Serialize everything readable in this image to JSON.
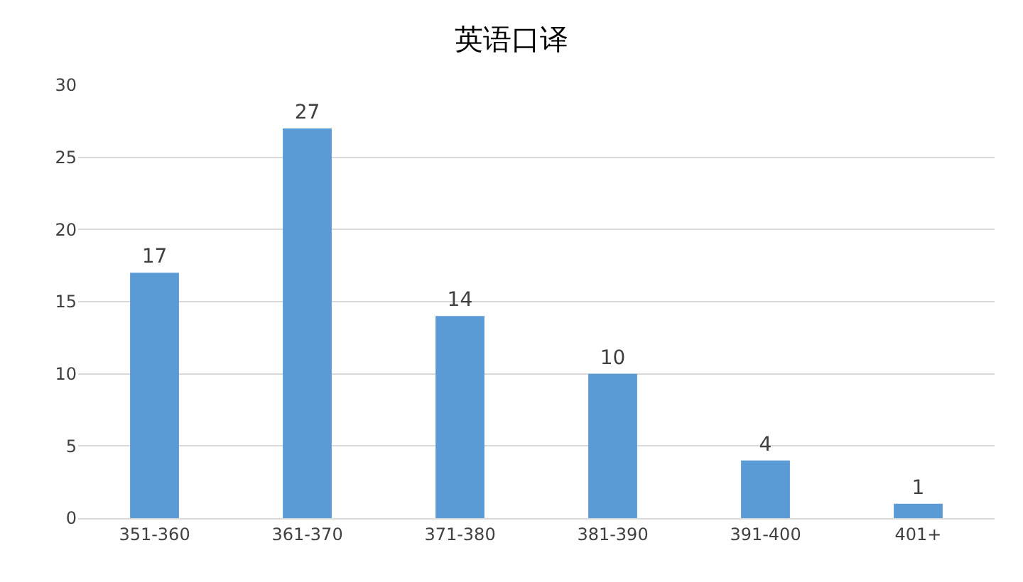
{
  "chart_data": {
    "type": "bar",
    "title": "英语口译",
    "categories": [
      "351-360",
      "361-370",
      "371-380",
      "381-390",
      "391-400",
      "401+"
    ],
    "values": [
      17,
      27,
      14,
      10,
      4,
      1
    ],
    "color": "#5b9bd5",
    "ylim": [
      0,
      30
    ],
    "yticks": [
      0,
      5,
      10,
      15,
      20,
      25,
      30
    ],
    "grid": "y",
    "data_labels": true
  }
}
